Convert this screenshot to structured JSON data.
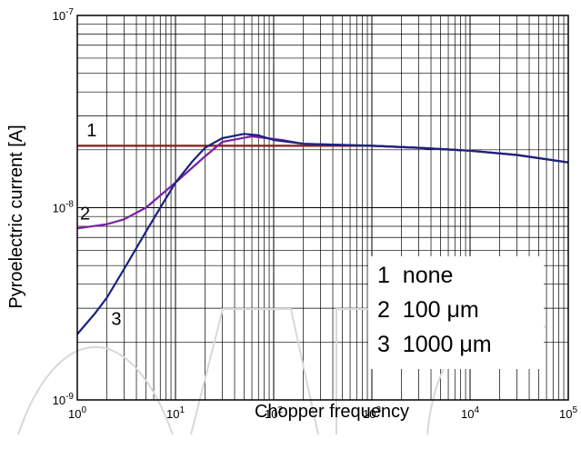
{
  "chart_data": {
    "type": "line",
    "title": "",
    "xlabel": "Chopper frequency",
    "ylabel": "Pyroelectric current [A]",
    "x_scale": "log",
    "y_scale": "log",
    "xlim": [
      1,
      100000
    ],
    "ylim": [
      1e-09,
      1e-07
    ],
    "grid": true,
    "x_ticks": [
      {
        "base": "10",
        "exp": "0",
        "value": 1
      },
      {
        "base": "10",
        "exp": "1",
        "value": 10
      },
      {
        "base": "10",
        "exp": "2",
        "value": 100
      },
      {
        "base": "10",
        "exp": "3",
        "value": 1000
      },
      {
        "base": "10",
        "exp": "4",
        "value": 10000
      },
      {
        "base": "10",
        "exp": "5",
        "value": 100000
      }
    ],
    "y_ticks": [
      {
        "base": "10",
        "exp": "-9",
        "value": 1e-09
      },
      {
        "base": "10",
        "exp": "-8",
        "value": 1e-08
      },
      {
        "base": "10",
        "exp": "-7",
        "value": 1e-07
      }
    ],
    "legend": {
      "placement": "bottom-right",
      "entries": [
        "1  none",
        "2  100 μm",
        "3  1000 μm"
      ]
    },
    "series": [
      {
        "label": "1",
        "color": "#8b1a1a",
        "x": [
          1,
          10,
          100,
          1000,
          3000,
          10000,
          30000,
          100000
        ],
        "y": [
          2.1e-08,
          2.1e-08,
          2.1e-08,
          2.1e-08,
          2.05e-08,
          1.98e-08,
          1.88e-08,
          1.72e-08
        ]
      },
      {
        "label": "2",
        "color": "#7b1fa2",
        "x": [
          1,
          2,
          3,
          5,
          10,
          20,
          30,
          60,
          120,
          200,
          1000,
          3000,
          10000,
          30000,
          100000
        ],
        "y": [
          7.8e-09,
          8.2e-09,
          8.7e-09,
          1e-08,
          1.35e-08,
          1.85e-08,
          2.2e-08,
          2.35e-08,
          2.25e-08,
          2.15e-08,
          2.1e-08,
          2.05e-08,
          1.98e-08,
          1.88e-08,
          1.72e-08
        ]
      },
      {
        "label": "3",
        "color": "#1a237e",
        "x": [
          1,
          1.5,
          2,
          3,
          5,
          7,
          10,
          15,
          20,
          30,
          50,
          70,
          100,
          200,
          1000,
          3000,
          10000,
          30000,
          100000
        ],
        "y": [
          2.2e-09,
          2.8e-09,
          3.4e-09,
          4.8e-09,
          7.5e-09,
          1e-08,
          1.35e-08,
          1.75e-08,
          2.05e-08,
          2.3e-08,
          2.42e-08,
          2.38e-08,
          2.25e-08,
          2.15e-08,
          2.1e-08,
          2.05e-08,
          1.98e-08,
          1.88e-08,
          1.72e-08
        ]
      }
    ],
    "annotations": [
      {
        "text": "1",
        "x": 1.4,
        "y": 2.35e-08
      },
      {
        "text": "2",
        "x": 1.2,
        "y": 8.7e-09
      },
      {
        "text": "3",
        "x": 2.5,
        "y": 2.45e-09
      }
    ]
  }
}
